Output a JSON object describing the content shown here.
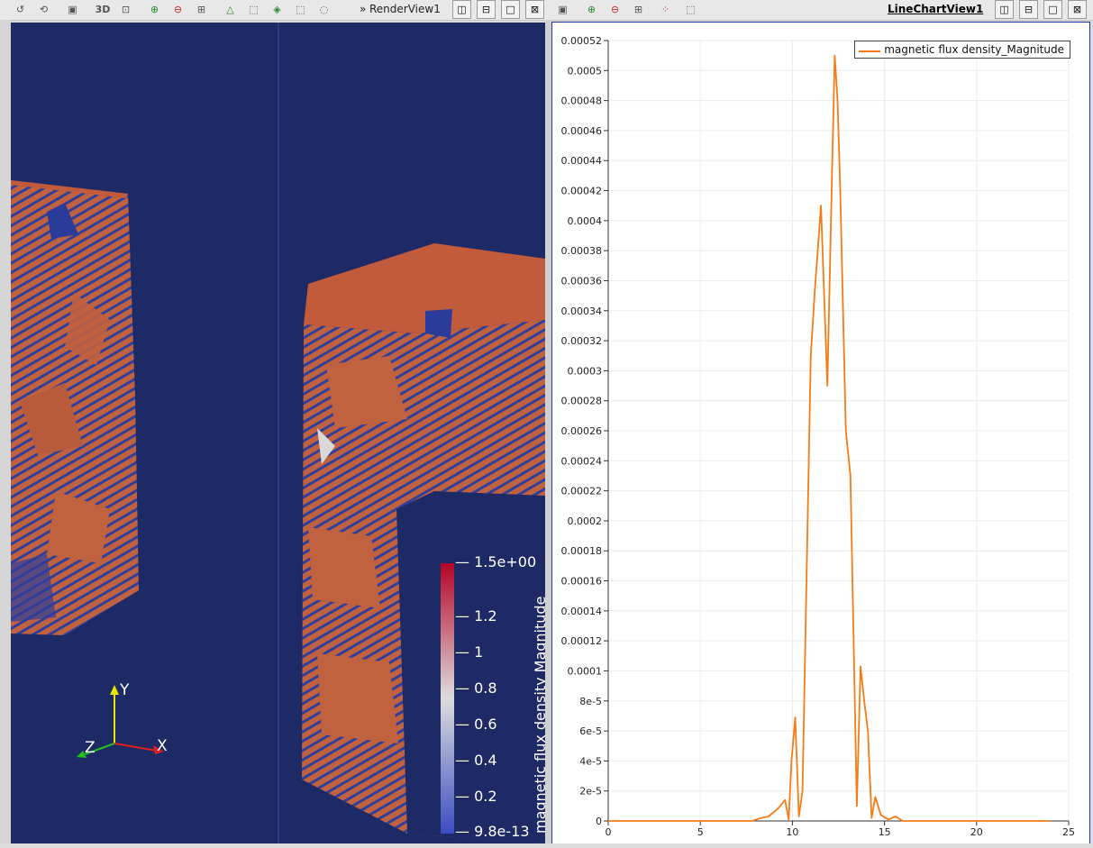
{
  "render_view": {
    "title": "RenderView1",
    "toolbar_icons": [
      "reset-camera-icon",
      "reset-camera-closest-icon",
      "capture-screenshot-icon",
      "toggle-3d-icon",
      "zoom-to-box-icon",
      "select-cells-on-icon",
      "select-points-on-icon",
      "select-cells-through-icon",
      "select-points-through-icon",
      "select-cells-polygon-icon",
      "select-points-polygon-icon",
      "select-blocks-icon",
      "interactive-select-icon",
      "hover-points-icon"
    ],
    "toggle_3d_label": "3D",
    "background_color": "#1e2a66",
    "axes": {
      "x": "X",
      "y": "Y",
      "z": "Z"
    },
    "colorbar": {
      "title": "magnetic flux density Magnitude",
      "ticks": [
        "1.5e+00",
        "1.2",
        "1",
        "0.8",
        "0.6",
        "0.4",
        "0.2",
        "9.8e-13"
      ],
      "low_color": "#3b4cc0",
      "mid_color": "#dddddd",
      "high_color": "#b40426"
    }
  },
  "line_chart_view": {
    "title": "LineChartView1",
    "legend_label": "magnetic flux density_Magnitude",
    "line_color": "#f57b16"
  },
  "view_buttons": {
    "split_h": "◫",
    "split_v": "⊟",
    "maximize": "□",
    "close": "⊠"
  },
  "chart_data": {
    "type": "line",
    "title": "",
    "xlabel": "",
    "ylabel": "",
    "xlim": [
      0,
      25
    ],
    "ylim": [
      0,
      0.00052
    ],
    "x_ticks": [
      "0",
      "5",
      "10",
      "15",
      "20",
      "25"
    ],
    "y_ticks": [
      "0",
      "2e-5",
      "4e-5",
      "6e-5",
      "8e-5",
      "0.0001",
      "0.00012",
      "0.00014",
      "0.00016",
      "0.00018",
      "0.0002",
      "0.00022",
      "0.00024",
      "0.00026",
      "0.00028",
      "0.0003",
      "0.00032",
      "0.00034",
      "0.00036",
      "0.00038",
      "0.0004",
      "0.00042",
      "0.00044",
      "0.00046",
      "0.00048",
      "0.0005",
      "0.00052"
    ],
    "grid": true,
    "legend_position": "top-right",
    "series": [
      {
        "name": "magnetic flux density_Magnitude",
        "x": [
          0,
          7.8,
          8.3,
          8.7,
          9.2,
          9.6,
          9.8,
          9.95,
          10.15,
          10.35,
          10.55,
          11.0,
          11.2,
          11.55,
          11.9,
          12.15,
          12.3,
          12.45,
          12.6,
          12.9,
          13.15,
          13.5,
          13.7,
          13.9,
          14.1,
          14.3,
          14.5,
          14.8,
          15.2,
          15.6,
          16.0,
          24.0
        ],
        "y": [
          0,
          0,
          2e-06,
          3e-06,
          8e-06,
          1.4e-05,
          1e-06,
          4e-05,
          6.9e-05,
          3e-06,
          2e-05,
          0.00031,
          0.00035,
          0.00041,
          0.00029,
          0.00043,
          0.00051,
          0.00048,
          0.00042,
          0.00026,
          0.00023,
          1e-05,
          0.000103,
          8e-05,
          6e-05,
          2e-06,
          1.6e-05,
          4e-06,
          1e-06,
          3e-06,
          0,
          0
        ]
      }
    ]
  }
}
